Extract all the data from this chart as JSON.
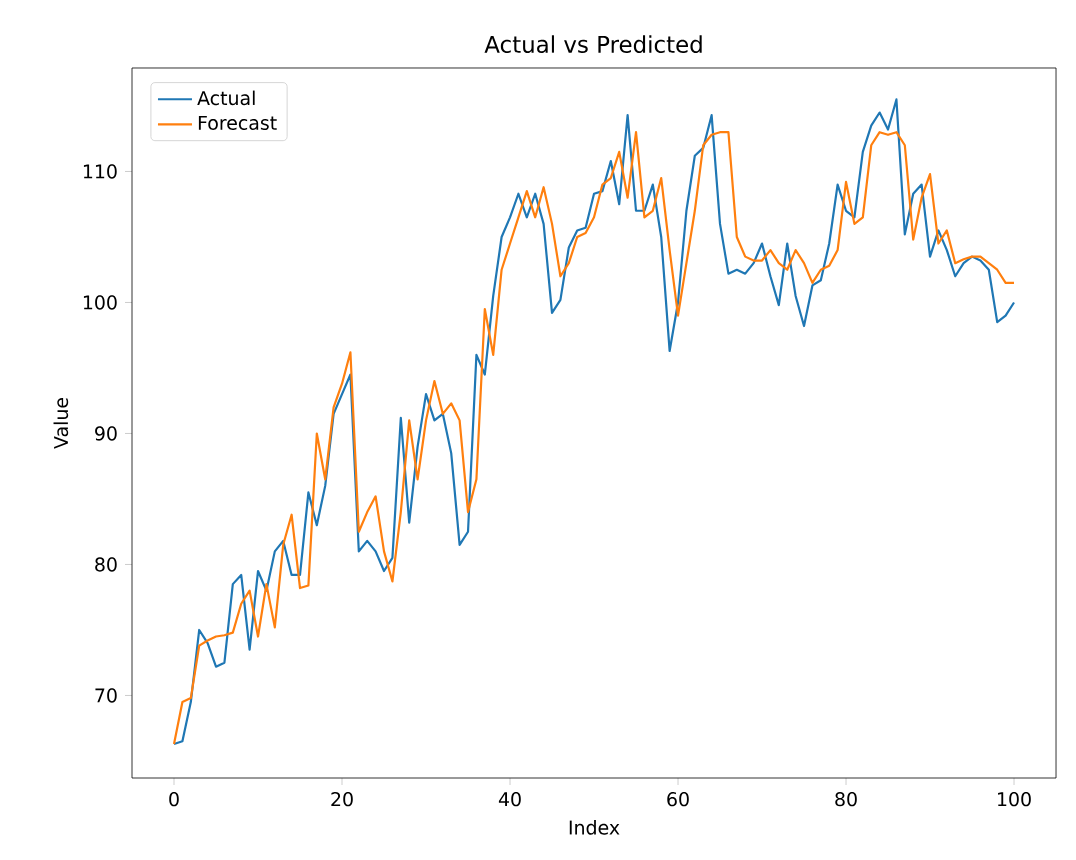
{
  "chart_data": {
    "type": "line",
    "title": "Actual vs Predicted",
    "xlabel": "Index",
    "ylabel": "Value",
    "x": [
      0,
      1,
      2,
      3,
      4,
      5,
      6,
      7,
      8,
      9,
      10,
      11,
      12,
      13,
      14,
      15,
      16,
      17,
      18,
      19,
      20,
      21,
      22,
      23,
      24,
      25,
      26,
      27,
      28,
      29,
      30,
      31,
      32,
      33,
      34,
      35,
      36,
      37,
      38,
      39,
      40,
      41,
      42,
      43,
      44,
      45,
      46,
      47,
      48,
      49,
      50,
      51,
      52,
      53,
      54,
      55,
      56,
      57,
      58,
      59,
      60,
      61,
      62,
      63,
      64,
      65,
      66,
      67,
      68,
      69,
      70,
      71,
      72,
      73,
      74,
      75,
      76,
      77,
      78,
      79,
      80,
      81,
      82,
      83,
      84,
      85,
      86,
      87,
      88,
      89,
      90,
      91,
      92,
      93,
      94,
      95,
      96,
      97,
      98,
      99,
      100
    ],
    "series": [
      {
        "name": "Actual",
        "color": "#1f77b4",
        "values": [
          66.3,
          66.5,
          69.5,
          75,
          74,
          72.2,
          72.5,
          78.5,
          79.2,
          73.5,
          79.5,
          78,
          81,
          81.8,
          79.2,
          79.2,
          85.5,
          83,
          86,
          91.5,
          93,
          94.5,
          81,
          81.8,
          81,
          79.5,
          80.5,
          91.2,
          83.2,
          89,
          93,
          91,
          91.5,
          88.5,
          81.5,
          82.5,
          96,
          94.5,
          100.5,
          105,
          106.5,
          108.3,
          106.5,
          108.3,
          106,
          99.2,
          100.2,
          104.2,
          105.5,
          105.7,
          108.3,
          108.5,
          110.8,
          107.5,
          114.3,
          107,
          107,
          109,
          105,
          96.3,
          100,
          107,
          111.2,
          111.8,
          114.3,
          106,
          102.2,
          102.5,
          102.2,
          103,
          104.5,
          102,
          99.8,
          104.5,
          100.5,
          98.2,
          101.3,
          101.7,
          104.5,
          109,
          107,
          106.5,
          111.5,
          113.5,
          114.5,
          113.2,
          115.5,
          105.2,
          108.3,
          109,
          103.5,
          105.5,
          104,
          102,
          103,
          103.5,
          103.2,
          102.5,
          98.5,
          99,
          100
        ]
      },
      {
        "name": "Forecast",
        "color": "#ff7f0e",
        "values": [
          66.3,
          69.5,
          69.8,
          73.8,
          74.2,
          74.5,
          74.6,
          74.8,
          77,
          78,
          74.5,
          78.5,
          75.2,
          81.5,
          83.8,
          78.2,
          78.4,
          90,
          86.5,
          92,
          93.8,
          96.2,
          82.5,
          84,
          85.2,
          81,
          78.7,
          84,
          91,
          86.5,
          91,
          94,
          91.5,
          92.3,
          91,
          84,
          86.5,
          99.5,
          96,
          102.5,
          104.5,
          106.5,
          108.5,
          106.5,
          108.8,
          106,
          102,
          103,
          105,
          105.3,
          106.5,
          109,
          109.5,
          111.5,
          108,
          113,
          106.5,
          107,
          109.5,
          104,
          99,
          103,
          107,
          112,
          112.8,
          113,
          113,
          105,
          103.5,
          103.2,
          103.2,
          104,
          103,
          102.5,
          104,
          103,
          101.5,
          102.5,
          102.8,
          104,
          109.2,
          106,
          106.5,
          112,
          113,
          112.8,
          113,
          112,
          104.8,
          108,
          109.8,
          104.5,
          105.5,
          103,
          103.3,
          103.5,
          103.5,
          103,
          102.5,
          101.5,
          101.5
        ]
      }
    ],
    "xlim": [
      -5,
      105
    ],
    "ylim": [
      63.7,
      117.9
    ],
    "xticks": [
      0,
      20,
      40,
      60,
      80,
      100
    ],
    "yticks": [
      70,
      80,
      90,
      100,
      110
    ],
    "grid": false,
    "legend": "top left",
    "marker": "none",
    "line_style": "solid"
  }
}
